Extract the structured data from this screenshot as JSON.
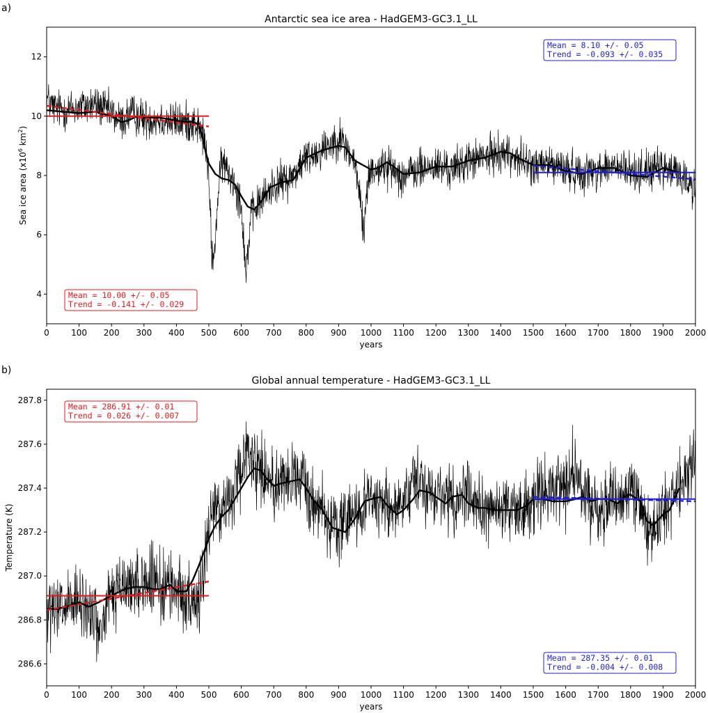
{
  "chart_data": [
    {
      "panel_label": "a)",
      "type": "line",
      "title": "Antarctic sea ice area - HadGEM3-GC3.1_LL",
      "xlabel": "years",
      "ylabel_main": "Sea ice area (x10",
      "ylabel_sup1": "6",
      "ylabel_mid": " km",
      "ylabel_sup2": "2",
      "ylabel_end": ")",
      "xlim": [
        0,
        2000
      ],
      "ylim": [
        3,
        13
      ],
      "x_ticks": [
        0,
        100,
        200,
        300,
        400,
        500,
        600,
        700,
        800,
        900,
        1000,
        1100,
        1200,
        1300,
        1400,
        1500,
        1600,
        1700,
        1800,
        1900,
        2000
      ],
      "y_ticks": [
        4,
        6,
        8,
        10,
        12
      ],
      "grid": false,
      "series": [
        {
          "style": "annual (thin black)",
          "noise_amplitude": 0.55,
          "x": [
            0,
            20,
            50,
            100,
            150,
            200,
            230,
            260,
            300,
            350,
            400,
            450,
            470,
            480,
            490,
            500,
            505,
            510,
            515,
            520,
            530,
            540,
            550,
            580,
            600,
            610,
            615,
            620,
            630,
            650,
            680,
            700,
            750,
            800,
            850,
            900,
            920,
            950,
            970,
            975,
            980,
            990,
            1000,
            1050,
            1100,
            1150,
            1200,
            1250,
            1300,
            1350,
            1400,
            1450,
            1500,
            1550,
            1600,
            1650,
            1700,
            1750,
            1800,
            1850,
            1900,
            1950,
            2000
          ],
          "values": [
            10.6,
            10.3,
            10.2,
            10.3,
            10.4,
            10.1,
            9.8,
            10.1,
            9.9,
            9.9,
            9.8,
            9.8,
            9.6,
            9.4,
            9.0,
            7.8,
            6.5,
            5.3,
            5.0,
            6.0,
            7.5,
            8.5,
            8.3,
            7.8,
            7.0,
            5.5,
            4.6,
            5.5,
            6.6,
            7.0,
            7.4,
            7.7,
            7.9,
            8.6,
            8.9,
            9.3,
            9.0,
            8.4,
            7.0,
            6.0,
            6.5,
            7.8,
            8.2,
            8.3,
            8.0,
            8.2,
            8.3,
            8.2,
            8.5,
            8.6,
            8.8,
            8.6,
            8.3,
            8.4,
            8.2,
            8.1,
            8.2,
            8.3,
            8.1,
            8.2,
            8.2,
            8.1,
            7.5
          ]
        },
        {
          "style": "smoothed (thick black)",
          "x": [
            0,
            50,
            100,
            150,
            200,
            230,
            250,
            280,
            300,
            350,
            400,
            430,
            450,
            470,
            480,
            490,
            500,
            520,
            540,
            560,
            580,
            600,
            620,
            640,
            660,
            690,
            720,
            760,
            800,
            850,
            900,
            920,
            950,
            1000,
            1020,
            1050,
            1100,
            1150,
            1200,
            1250,
            1300,
            1350,
            1400,
            1430,
            1450,
            1500,
            1550,
            1600,
            1650,
            1700,
            1750,
            1800,
            1850,
            1900,
            1950
          ],
          "values": [
            10.2,
            10.15,
            10.1,
            10.15,
            10.0,
            9.8,
            9.85,
            10.0,
            9.95,
            9.95,
            9.85,
            9.8,
            9.82,
            9.7,
            9.3,
            8.8,
            8.4,
            8.05,
            7.9,
            7.85,
            7.7,
            7.3,
            6.95,
            6.85,
            7.1,
            7.6,
            7.75,
            7.85,
            8.6,
            8.85,
            9.0,
            8.95,
            8.5,
            8.2,
            8.25,
            8.45,
            8.05,
            8.1,
            8.3,
            8.3,
            8.5,
            8.6,
            8.8,
            8.75,
            8.6,
            8.35,
            8.35,
            8.15,
            8.05,
            8.25,
            8.25,
            8.0,
            7.95,
            8.25,
            8.1
          ]
        }
      ],
      "fits": [
        {
          "color": "#e41a1c",
          "style": "mean",
          "x": [
            0,
            500
          ],
          "y": [
            10.0,
            10.0
          ]
        },
        {
          "color": "#e41a1c",
          "style": "trend",
          "x": [
            0,
            500
          ],
          "y": [
            10.35,
            9.65
          ]
        },
        {
          "color": "#1f1fd6",
          "style": "mean",
          "x": [
            1500,
            2000
          ],
          "y": [
            8.1,
            8.1
          ]
        },
        {
          "color": "#1f1fd6",
          "style": "trend",
          "x": [
            1500,
            2000
          ],
          "y": [
            8.33,
            7.87
          ]
        }
      ],
      "annotations": [
        {
          "color": "#e41a1c",
          "corner": "bottom-left",
          "line1": "Mean  = 10.00  +/- 0.05",
          "line2": "Trend = -0.141 +/- 0.029"
        },
        {
          "color": "#1f1fd6",
          "corner": "top-right",
          "line1": "Mean  = 8.10   +/- 0.05",
          "line2": "Trend = -0.093 +/- 0.035"
        }
      ]
    },
    {
      "panel_label": "b)",
      "type": "line",
      "title": "Global annual temperature - HadGEM3-GC3.1_LL",
      "xlabel": "years",
      "ylabel_main": "Temperature (K)",
      "xlim": [
        0,
        2000
      ],
      "ylim": [
        286.5,
        287.85
      ],
      "x_ticks": [
        0,
        100,
        200,
        300,
        400,
        500,
        600,
        700,
        800,
        900,
        1000,
        1100,
        1200,
        1300,
        1400,
        1500,
        1600,
        1700,
        1800,
        1900,
        2000
      ],
      "y_ticks": [
        286.6,
        286.8,
        287.0,
        287.2,
        287.4,
        287.6,
        287.8
      ],
      "grid": false,
      "series": [
        {
          "style": "annual (thin black)",
          "noise_amplitude": 0.13,
          "x": [
            0,
            50,
            100,
            150,
            160,
            200,
            250,
            300,
            350,
            400,
            440,
            450,
            460,
            480,
            500,
            520,
            550,
            600,
            620,
            650,
            700,
            750,
            800,
            850,
            900,
            950,
            1000,
            1050,
            1100,
            1150,
            1200,
            1250,
            1300,
            1350,
            1400,
            1450,
            1500,
            1550,
            1600,
            1620,
            1650,
            1700,
            1750,
            1800,
            1850,
            1870,
            1900,
            1950,
            2000
          ],
          "values": [
            286.82,
            286.85,
            286.87,
            286.83,
            286.72,
            286.92,
            286.95,
            286.98,
            286.95,
            286.95,
            286.9,
            286.8,
            286.85,
            287.0,
            287.2,
            287.35,
            287.3,
            287.45,
            287.6,
            287.5,
            287.42,
            287.45,
            287.4,
            287.3,
            287.2,
            287.3,
            287.35,
            287.32,
            287.3,
            287.45,
            287.38,
            287.35,
            287.38,
            287.3,
            287.3,
            287.3,
            287.35,
            287.38,
            287.4,
            287.5,
            287.38,
            287.3,
            287.35,
            287.4,
            287.25,
            287.2,
            287.3,
            287.4,
            287.55
          ]
        },
        {
          "style": "smoothed (thick black)",
          "x": [
            0,
            30,
            60,
            100,
            130,
            160,
            200,
            240,
            270,
            300,
            330,
            350,
            380,
            400,
            430,
            450,
            470,
            490,
            500,
            520,
            540,
            560,
            580,
            600,
            620,
            640,
            660,
            680,
            700,
            720,
            750,
            780,
            800,
            820,
            850,
            880,
            900,
            920,
            950,
            980,
            1000,
            1030,
            1050,
            1080,
            1100,
            1130,
            1150,
            1180,
            1200,
            1230,
            1250,
            1280,
            1300,
            1330,
            1350,
            1380,
            1400,
            1430,
            1450,
            1480,
            1500,
            1530,
            1560,
            1600,
            1630,
            1650,
            1680,
            1700,
            1730,
            1760,
            1790,
            1800,
            1830,
            1850,
            1870,
            1900,
            1920,
            1950
          ],
          "values": [
            286.85,
            286.85,
            286.86,
            286.88,
            286.86,
            286.88,
            286.91,
            286.94,
            286.95,
            286.95,
            286.94,
            286.94,
            286.96,
            286.93,
            286.93,
            286.98,
            287.05,
            287.13,
            287.17,
            287.23,
            287.27,
            287.3,
            287.35,
            287.4,
            287.45,
            287.49,
            287.48,
            287.44,
            287.41,
            287.42,
            287.43,
            287.44,
            287.4,
            287.35,
            287.3,
            287.22,
            287.21,
            287.2,
            287.26,
            287.34,
            287.35,
            287.36,
            287.32,
            287.28,
            287.3,
            287.35,
            287.39,
            287.38,
            287.36,
            287.33,
            287.36,
            287.37,
            287.33,
            287.31,
            287.31,
            287.3,
            287.3,
            287.3,
            287.3,
            287.32,
            287.35,
            287.35,
            287.34,
            287.34,
            287.35,
            287.36,
            287.34,
            287.35,
            287.35,
            287.33,
            287.37,
            287.37,
            287.34,
            287.25,
            287.23,
            287.28,
            287.3,
            287.4
          ]
        }
      ],
      "fits": [
        {
          "color": "#e41a1c",
          "style": "mean",
          "x": [
            0,
            500
          ],
          "y": [
            286.91,
            286.91
          ]
        },
        {
          "color": "#e41a1c",
          "style": "trend",
          "x": [
            0,
            500
          ],
          "y": [
            286.845,
            286.975
          ]
        },
        {
          "color": "#1f1fd6",
          "style": "mean",
          "x": [
            1500,
            2000
          ],
          "y": [
            287.35,
            287.35
          ]
        },
        {
          "color": "#1f1fd6",
          "style": "trend",
          "x": [
            1500,
            2000
          ],
          "y": [
            287.36,
            287.34
          ]
        }
      ],
      "annotations": [
        {
          "color": "#e41a1c",
          "corner": "top-left",
          "line1": "Mean  = 286.91 +/- 0.01",
          "line2": "Trend = 0.026  +/- 0.007"
        },
        {
          "color": "#1f1fd6",
          "corner": "bottom-right",
          "line1": "Mean  = 287.35 +/- 0.01",
          "line2": "Trend = -0.004 +/- 0.008"
        }
      ]
    }
  ]
}
